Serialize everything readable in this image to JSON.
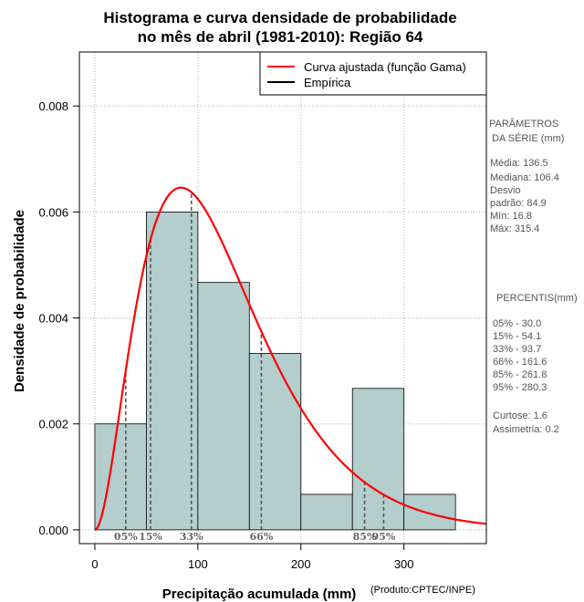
{
  "chart_data": {
    "type": "histogram",
    "title_lines": [
      "Histograma e curva densidade de probabilidade",
      "no mês de abril (1981-2010): Região 64"
    ],
    "xlabel": "Precipitação acumulada (mm)",
    "ylabel": "Densidade de probabilidade",
    "credit": "(Produto:CPTEC/INPE)",
    "xlim": [
      -15,
      380
    ],
    "ylim": [
      -0.00026,
      0.00902
    ],
    "x_ticks": [
      0,
      100,
      200,
      300
    ],
    "y_ticks": [
      0.0,
      0.002,
      0.004,
      0.006,
      0.008
    ],
    "y_tick_labels": [
      "0.000",
      "0.002",
      "0.004",
      "0.006",
      "0.008"
    ],
    "grid": true,
    "bins": [
      {
        "start": 0,
        "end": 50,
        "density": 0.002
      },
      {
        "start": 50,
        "end": 100,
        "density": 0.006
      },
      {
        "start": 100,
        "end": 150,
        "density": 0.00467
      },
      {
        "start": 150,
        "end": 200,
        "density": 0.00333
      },
      {
        "start": 200,
        "end": 250,
        "density": 0.00067
      },
      {
        "start": 250,
        "end": 300,
        "density": 0.00267
      },
      {
        "start": 300,
        "end": 350,
        "density": 0.00067
      }
    ],
    "bar_color": "#b4cdcd",
    "fitted_curve": {
      "distribution": "gamma",
      "shape": 2.99,
      "scale": 42.0,
      "color": "#ff0000"
    },
    "percentile_lines": [
      {
        "label": "05%",
        "x": 30.0
      },
      {
        "label": "15%",
        "x": 54.1
      },
      {
        "label": "33%",
        "x": 93.7
      },
      {
        "label": "66%",
        "x": 161.6
      },
      {
        "label": "85%",
        "x": 261.8
      },
      {
        "label": "95%",
        "x": 280.3
      }
    ],
    "legend": {
      "position": "top-right",
      "entries": [
        {
          "label": "Curva ajustada (função Gama)",
          "color": "#ff0000"
        },
        {
          "label": "Empírica",
          "color": "#000000"
        }
      ]
    }
  },
  "side_panel": {
    "params_title_1": "PARÂMETROS",
    "params_title_2": "DA SÉRIE (mm)",
    "media": "Média:  136.5",
    "mediana": "Mediana:  106.4",
    "desvio_1": "Desvio",
    "desvio_2": "padrão:  84.9",
    "min": "Mín:  16.8",
    "max": "Máx:  315.4",
    "percentis_title": "PERCENTIS(mm)",
    "p05": "05% -  30.0",
    "p15": "15% -  54.1",
    "p33": "33% -  93.7",
    "p66": "66% -  161.6",
    "p85": "85% -  261.8",
    "p95": "95% -  280.3",
    "curtose": "Curtose:  1.6",
    "assimetria": "Assimetria:  0.2"
  }
}
